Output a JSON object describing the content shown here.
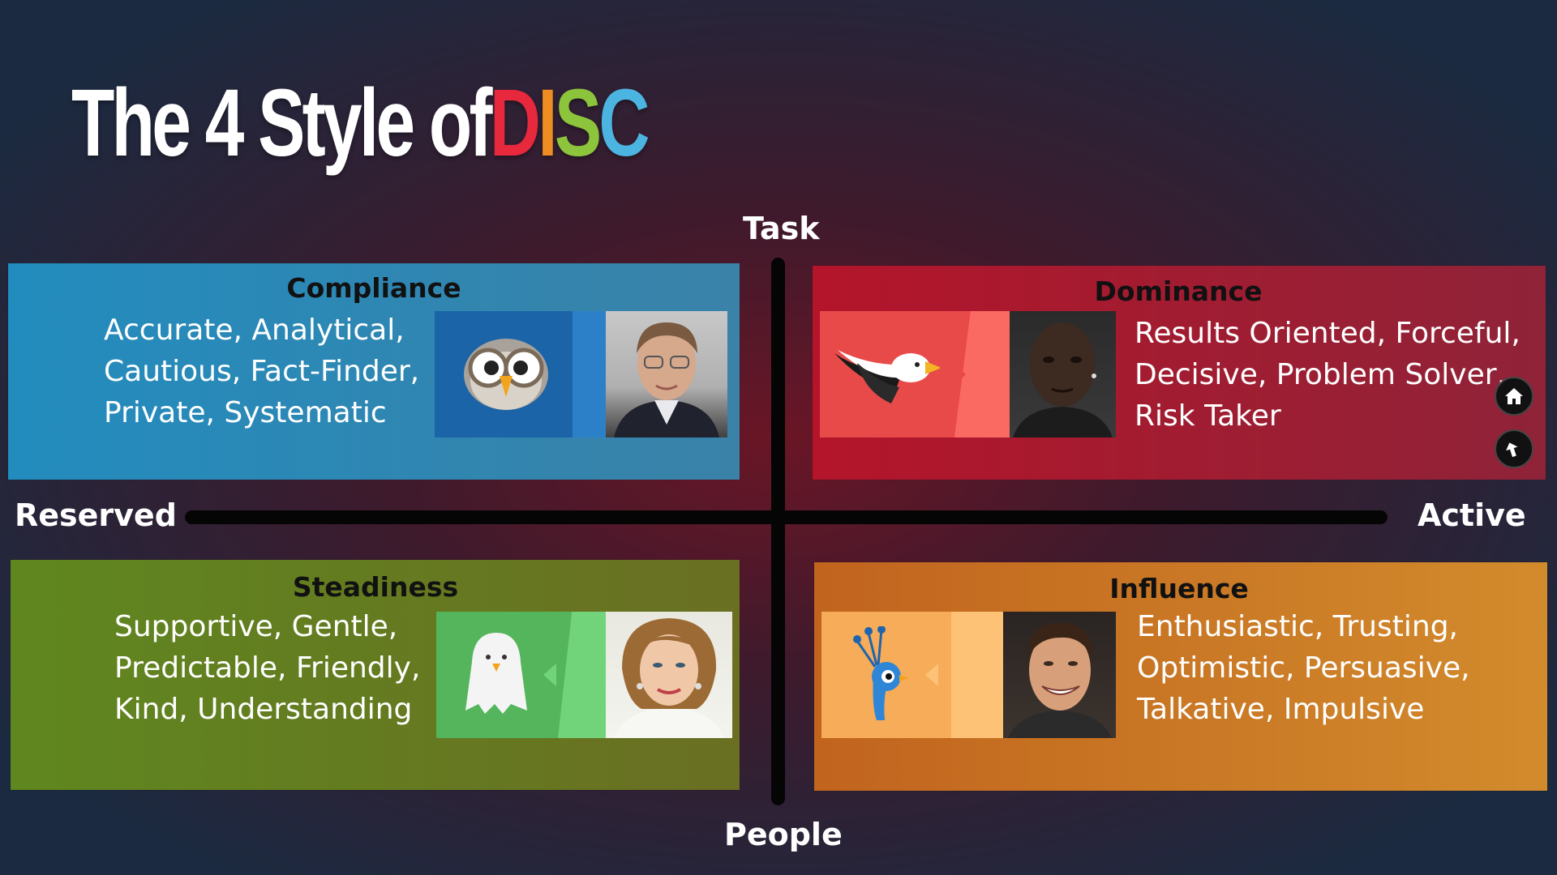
{
  "title": {
    "prefix": "The 4 Style of ",
    "letters": [
      {
        "char": "D",
        "color": "#e8283c"
      },
      {
        "char": "I",
        "color": "#ee8e22"
      },
      {
        "char": "S",
        "color": "#8cc43c"
      },
      {
        "char": "C",
        "color": "#4cb4e0"
      }
    ]
  },
  "axes": {
    "top": "Task",
    "bottom": "People",
    "left": "Reserved",
    "right": "Active"
  },
  "quadrants": {
    "compliance": {
      "title": "Compliance",
      "lines": [
        "Accurate, Analytical,",
        "Cautious, Fact-Finder,",
        "Private, Systematic"
      ],
      "animal_icon": "owl-icon",
      "color": "#228cbe"
    },
    "dominance": {
      "title": "Dominance",
      "lines": [
        "Results Oriented, Forceful,",
        "Decisive, Problem Solver,",
        "Risk Taker"
      ],
      "animal_icon": "eagle-icon",
      "color": "#b4152a"
    },
    "steadiness": {
      "title": "Steadiness",
      "lines": [
        "Supportive, Gentle,",
        "Predictable, Friendly,",
        "Kind, Understanding"
      ],
      "animal_icon": "dove-icon",
      "color": "#5f871f"
    },
    "influence": {
      "title": "Influence",
      "lines": [
        "Enthusiastic, Trusting,",
        "Optimistic, Persuasive,",
        "Talkative, Impulsive"
      ],
      "animal_icon": "peacock-icon",
      "color": "#c1641e"
    }
  },
  "nav": {
    "home_icon": "home-icon",
    "back_icon": "back-arrow-icon"
  }
}
